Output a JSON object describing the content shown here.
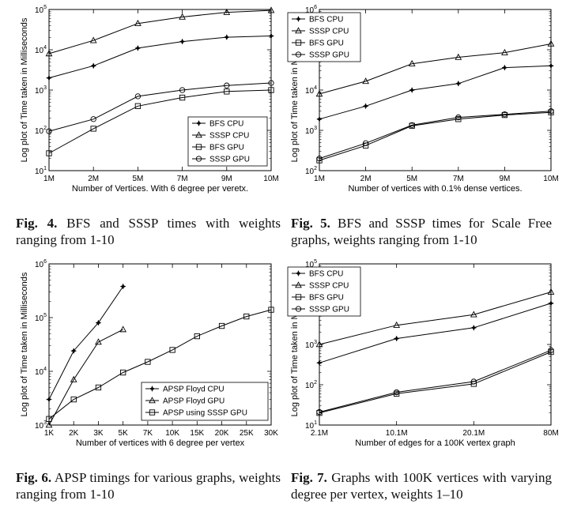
{
  "chart_data": [
    {
      "id": "fig4",
      "type": "line",
      "log_y": true,
      "ylim": [
        10,
        100000
      ],
      "y_ticks": [
        1,
        2,
        3,
        4,
        5
      ],
      "x_tick_labels": [
        "1M",
        "2M",
        "5M",
        "7M",
        "9M",
        "10M"
      ],
      "xlabel": "Number of Vertices. With 6 degree per veretx.",
      "ylabel": "Log plot of Time taken in Milliseconds",
      "legend_position": "bottom-right",
      "series": [
        {
          "name": "BFS CPU",
          "marker": "star",
          "values": [
            2000,
            4000,
            11000,
            16000,
            20500,
            22000
          ]
        },
        {
          "name": "SSSP CPU",
          "marker": "triangle",
          "values": [
            8000,
            17000,
            45000,
            65000,
            85000,
            95000
          ]
        },
        {
          "name": "BFS GPU",
          "marker": "square",
          "values": [
            27,
            110,
            400,
            650,
            920,
            1000
          ]
        },
        {
          "name": "SSSP GPU",
          "marker": "circle",
          "values": [
            95,
            190,
            700,
            1000,
            1300,
            1500
          ]
        }
      ]
    },
    {
      "id": "fig5",
      "type": "line",
      "log_y": true,
      "ylim": [
        100,
        1000000
      ],
      "y_ticks": [
        2,
        3,
        4,
        5,
        6
      ],
      "x_tick_labels": [
        "1M",
        "2M",
        "5M",
        "7M",
        "9M",
        "10M"
      ],
      "xlabel": "Number of vertices with 0.1% dense vertices.",
      "ylabel": "Log plot of Time taken in Milliseconds",
      "legend_position": "top-left",
      "series": [
        {
          "name": "BFS CPU",
          "marker": "star",
          "values": [
            1900,
            4000,
            10000,
            14500,
            36000,
            40000
          ]
        },
        {
          "name": "SSSP CPU",
          "marker": "triangle",
          "values": [
            8000,
            16500,
            45000,
            65000,
            85000,
            140000
          ]
        },
        {
          "name": "BFS GPU",
          "marker": "square",
          "values": [
            180,
            420,
            1300,
            1900,
            2400,
            2800
          ]
        },
        {
          "name": "SSSP GPU",
          "marker": "circle",
          "values": [
            200,
            480,
            1350,
            2100,
            2500,
            3000
          ]
        }
      ]
    },
    {
      "id": "fig6",
      "type": "line",
      "log_y": true,
      "ylim": [
        1000,
        1000000
      ],
      "y_ticks": [
        3,
        4,
        5,
        6
      ],
      "x_tick_labels": [
        "1K",
        "2K",
        "3K",
        "5K",
        "7K",
        "10K",
        "15K",
        "20K",
        "25K",
        "30K"
      ],
      "xlabel": "Number of vertices with 6 degree per vertex",
      "ylabel": "Log plot of Time taken in Milliseconds",
      "legend_position": "bottom-right",
      "series": [
        {
          "name": "APSP Floyd CPU",
          "marker": "star",
          "values": [
            3000,
            24000,
            80000,
            380000
          ]
        },
        {
          "name": "APSP Floyd GPU",
          "marker": "triangle",
          "values": [
            1000,
            7000,
            35000,
            60000
          ]
        },
        {
          "name": "APSP using SSSP GPU",
          "marker": "square",
          "values": [
            1300,
            3000,
            5000,
            9500,
            15000,
            25000,
            45000,
            70000,
            105000,
            140000
          ]
        }
      ]
    },
    {
      "id": "fig7",
      "type": "line",
      "log_y": true,
      "ylim": [
        10,
        100000
      ],
      "y_ticks": [
        1,
        2,
        3,
        4,
        5
      ],
      "x_tick_labels": [
        "2.1M",
        "10.1M",
        "20.1M",
        "80M"
      ],
      "xlabel": "Number of edges for a 100K vertex graph",
      "ylabel": "Log plot of Time taken in Milliseconds",
      "legend_position": "top-left",
      "series": [
        {
          "name": "BFS CPU",
          "marker": "star",
          "values": [
            350,
            1400,
            2600,
            10500
          ]
        },
        {
          "name": "SSSP CPU",
          "marker": "triangle",
          "values": [
            1000,
            3000,
            5500,
            20000
          ]
        },
        {
          "name": "BFS GPU",
          "marker": "square",
          "values": [
            20,
            60,
            105,
            650
          ]
        },
        {
          "name": "SSSP GPU",
          "marker": "circle",
          "values": [
            21,
            65,
            120,
            720
          ]
        }
      ]
    }
  ],
  "captions": [
    {
      "label": "Fig. 4.",
      "text": "BFS and SSSP times with weights ranging from 1-10"
    },
    {
      "label": "Fig. 5.",
      "text": "BFS and SSSP times for Scale Free graphs, weights ranging from 1-10"
    },
    {
      "label": "Fig. 6.",
      "text": "APSP timings for various graphs, weights ranging from 1-10"
    },
    {
      "label": "Fig. 7.",
      "text": "Graphs with 100K vertices with varying degree per vertex, weights 1–10"
    }
  ]
}
